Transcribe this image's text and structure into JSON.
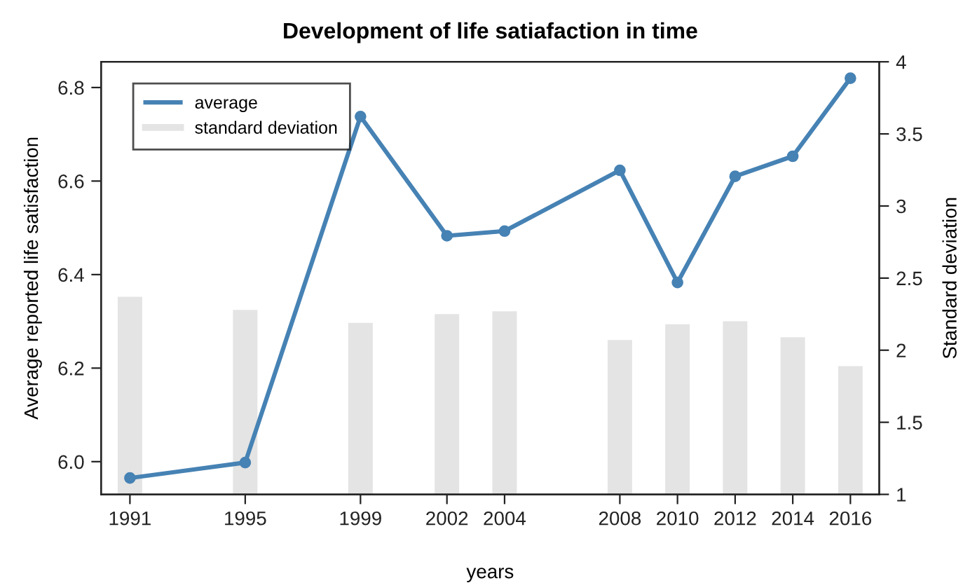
{
  "chart_data": {
    "type": "line",
    "title": "Development of life satiafaction in time",
    "xlabel": "years",
    "ylabel": "Average reported life satisfaction",
    "y2label": "Standard deviation",
    "x": [
      1991,
      1995,
      1999,
      2002,
      2004,
      2008,
      2010,
      2012,
      2014,
      2016
    ],
    "series": [
      {
        "name": "average",
        "color": "#4682b4",
        "marker": "circle",
        "values": [
          5.965,
          5.998,
          6.738,
          6.483,
          6.493,
          6.623,
          6.383,
          6.61,
          6.653,
          6.82
        ]
      },
      {
        "name": "standard deviation",
        "type": "bar",
        "axis": "y2",
        "color": "#e4e4e4",
        "values": [
          2.37,
          2.28,
          2.19,
          2.25,
          2.27,
          2.07,
          2.18,
          2.2,
          2.09,
          1.89
        ]
      }
    ],
    "xlim": [
      1990,
      2017
    ],
    "xticks": [
      1991,
      1995,
      1999,
      2002,
      2004,
      2008,
      2010,
      2012,
      2014,
      2016
    ],
    "ylim": [
      5.93,
      6.855
    ],
    "yticks": [
      {
        "value": 6,
        "label": "6.0"
      },
      {
        "value": 6.2,
        "label": "6.2"
      },
      {
        "value": 6.4,
        "label": "6.4"
      },
      {
        "value": 6.6,
        "label": "6.6"
      },
      {
        "value": 6.8,
        "label": "6.8"
      }
    ],
    "y2lim": [
      1,
      4
    ],
    "y2ticks": [
      1,
      1.5,
      2,
      2.5,
      3,
      3.5,
      4
    ],
    "legend": "top left",
    "grid": false
  }
}
